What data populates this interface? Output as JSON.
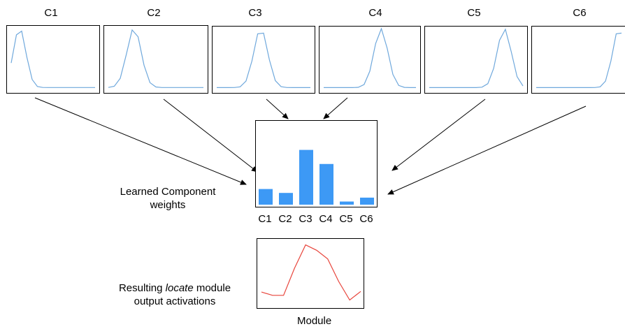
{
  "components": [
    {
      "title": "C1",
      "peak": 0.1
    },
    {
      "title": "C2",
      "peak": 0.27
    },
    {
      "title": "C3",
      "peak": 0.47
    },
    {
      "title": "C4",
      "peak": 0.62
    },
    {
      "title": "C5",
      "peak": 0.8
    },
    {
      "title": "C6",
      "peak": 0.97
    }
  ],
  "weights_chart": {
    "type": "bar",
    "categories": [
      "C1",
      "C2",
      "C3",
      "C4",
      "C5",
      "C6"
    ],
    "values": [
      0.2,
      0.15,
      0.7,
      0.52,
      0.04,
      0.09
    ],
    "ylim": [
      0,
      1
    ],
    "bar_color": "#3d99f5"
  },
  "weights_caption": {
    "line1": "Learned Component",
    "line2": "weights"
  },
  "output_chart": {
    "type": "line",
    "values": [
      0.22,
      0.17,
      0.17,
      0.58,
      0.93,
      0.85,
      0.72,
      0.38,
      0.1,
      0.23
    ],
    "ylim": [
      0,
      1
    ],
    "line_color": "#e8453c"
  },
  "output_caption": {
    "line1_prefix": "Resulting ",
    "line1_italic": "locate",
    "line1_suffix": " module",
    "line2": "output activations"
  },
  "output_label": "Module",
  "colors": {
    "component_curve": "#6fa8dc",
    "arrow": "#000000"
  }
}
